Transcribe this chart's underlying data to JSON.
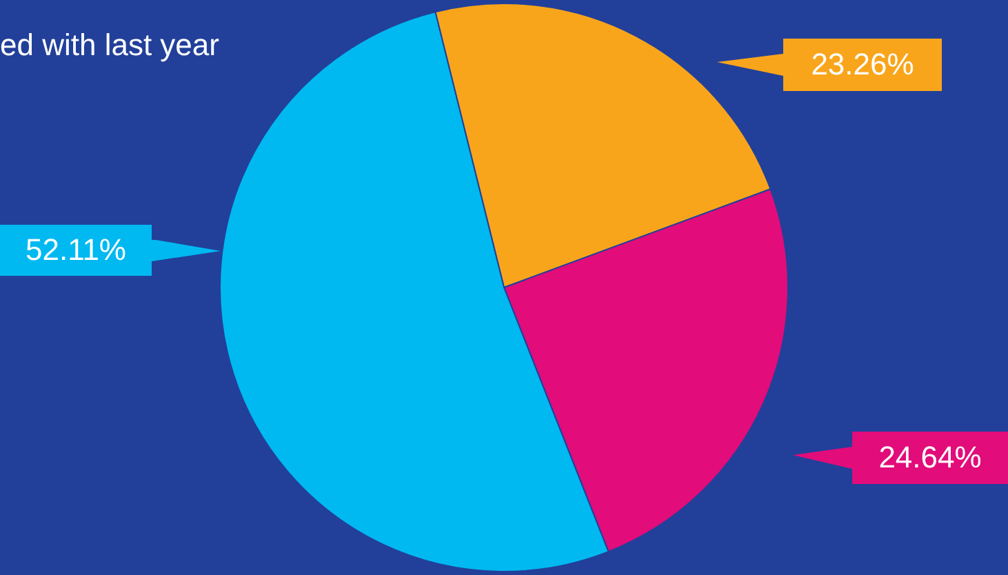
{
  "chart_data": {
    "type": "pie",
    "annotations": [
      "ed with last year"
    ],
    "categories": [
      null,
      null,
      null
    ],
    "values": [
      23.26,
      24.64,
      52.11
    ],
    "colors": [
      "#f9a51b",
      "#e20c7a",
      "#00b9f1"
    ],
    "value_labels": [
      "23.26%",
      "24.64%",
      "52.11%"
    ],
    "legend": false
  }
}
